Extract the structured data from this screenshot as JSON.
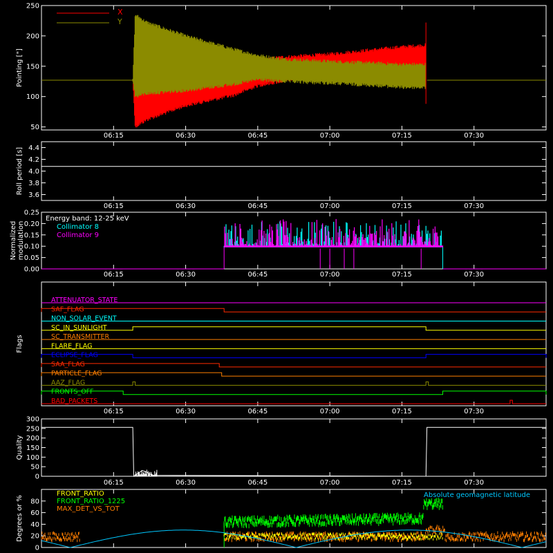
{
  "chart_data": [
    {
      "type": "line",
      "ylabel": "Pointing [\"]",
      "ylim": [
        45,
        250
      ],
      "yticks": [
        50,
        100,
        150,
        200,
        250
      ],
      "xlim": [
        "06:00",
        "07:45"
      ],
      "xticks": [
        "06:15",
        "06:30",
        "06:45",
        "07:00",
        "07:15",
        "07:30"
      ],
      "legend_placement": "top-left",
      "series": [
        {
          "name": "X",
          "color": "#ff0000",
          "x": [
            "06:00",
            "06:19",
            "06:19.5",
            "06:22",
            "06:30",
            "06:40",
            "06:45",
            "06:50",
            "07:00",
            "07:10",
            "07:15",
            "07:20",
            "07:20.2",
            "07:45"
          ],
          "y_high": [
            127,
            127,
            127,
            140,
            142,
            150,
            160,
            165,
            170,
            178,
            182,
            185,
            127,
            127
          ],
          "y_low": [
            127,
            127,
            50,
            62,
            85,
            102,
            118,
            125,
            140,
            146,
            148,
            145,
            127,
            127
          ]
        },
        {
          "name": "Y",
          "color": "#8b8b00",
          "x": [
            "06:00",
            "06:19",
            "06:19.5",
            "06:22",
            "06:30",
            "06:40",
            "06:45",
            "06:50",
            "07:00",
            "07:10",
            "07:15",
            "07:20",
            "07:20.2",
            "07:45"
          ],
          "y_high": [
            127,
            127,
            235,
            222,
            200,
            178,
            168,
            162,
            158,
            155,
            153,
            153,
            127,
            127
          ],
          "y_low": [
            127,
            127,
            100,
            105,
            110,
            120,
            128,
            125,
            122,
            118,
            115,
            115,
            127,
            127
          ]
        }
      ]
    },
    {
      "type": "line",
      "ylabel": "Roll period [s]",
      "ylim": [
        3.5,
        4.5
      ],
      "yticks": [
        3.6,
        3.8,
        4.0,
        4.2,
        4.4
      ],
      "xticks": [
        "06:15",
        "06:30",
        "06:45",
        "07:00",
        "07:15",
        "07:30"
      ],
      "series": [
        {
          "name": "",
          "color": "#ffffff",
          "value": 4.08
        }
      ]
    },
    {
      "type": "line",
      "ylabel": "Normalized modulation",
      "ylim": [
        0,
        0.25
      ],
      "yticks": [
        0.0,
        0.05,
        0.1,
        0.15,
        0.2,
        0.25
      ],
      "xticks": [
        "06:15",
        "06:30",
        "06:45",
        "07:00",
        "07:15",
        "07:30"
      ],
      "annotation": "Energy band: 12-25 keV",
      "series": [
        {
          "name": "Collimator 8",
          "color": "#00ffff",
          "active_start": "06:38",
          "active_end": "07:23.5",
          "baseline": 0.1
        },
        {
          "name": "Collimator 9",
          "color": "#ff00ff",
          "active_start": "06:38",
          "active_end": "07:23.5",
          "baseline": 0.1
        }
      ]
    },
    {
      "type": "line",
      "ylabel": "Flags",
      "xticks": [
        "06:15",
        "06:30",
        "06:45",
        "07:00",
        "07:15",
        "07:30"
      ],
      "series": [
        {
          "name": "ATTENUATOR_STATE",
          "color": "#ff00ff",
          "on": []
        },
        {
          "name": "SAF_FLAG",
          "color": "#ff2a00",
          "on": [
            [
              "06:00",
              "06:38"
            ]
          ]
        },
        {
          "name": "NON_SOLAR_EVENT",
          "color": "#00ffff",
          "on": []
        },
        {
          "name": "SC_IN_SUNLIGHT",
          "color": "#ffff00",
          "on": [
            [
              "06:19",
              "07:20"
            ]
          ]
        },
        {
          "name": "SC_TRANSMITTER",
          "color": "#ff7f00",
          "on": []
        },
        {
          "name": "FLARE_FLAG",
          "color": "#ffff00",
          "on": []
        },
        {
          "name": "ECLIPSE_FLAG",
          "color": "#0000ff",
          "on": [
            [
              "06:00",
              "06:19"
            ],
            [
              "07:20",
              "07:45"
            ]
          ]
        },
        {
          "name": "SAA_FLAG",
          "color": "#ff2a00",
          "on": [
            [
              "06:00",
              "06:37"
            ]
          ]
        },
        {
          "name": "PARTICLE_FLAG",
          "color": "#ff7f00",
          "on": [
            [
              "06:00",
              "06:37.5"
            ]
          ]
        },
        {
          "name": "AAZ_FLAG",
          "color": "#8b8b00",
          "on": [
            [
              "06:19",
              "06:19.5"
            ],
            [
              "07:20",
              "07:20.5"
            ]
          ]
        },
        {
          "name": "FRONTS_OFF",
          "color": "#00ff00",
          "on": [
            [
              "06:00",
              "06:17"
            ],
            [
              "07:23.5",
              "07:45"
            ]
          ]
        },
        {
          "name": "BAD_PACKETS",
          "color": "#ff0000",
          "on": [
            [
              "07:37.5",
              "07:38"
            ]
          ]
        }
      ]
    },
    {
      "type": "line",
      "ylabel": "Quality",
      "ylim": [
        0,
        300
      ],
      "yticks": [
        0,
        50,
        100,
        150,
        200,
        250,
        300
      ],
      "xticks": [
        "06:15",
        "06:30",
        "06:45",
        "07:00",
        "07:15",
        "07:30"
      ],
      "series": [
        {
          "name": "",
          "color": "#ffffff",
          "x": [
            "06:00",
            "06:19",
            "06:19.2",
            "06:20",
            "06:21",
            "06:22",
            "06:23",
            "07:20",
            "07:20.2",
            "07:45"
          ],
          "y": [
            256,
            256,
            0,
            15,
            30,
            20,
            5,
            0,
            256,
            256
          ]
        }
      ]
    },
    {
      "type": "line",
      "ylabel": "Degrees or %",
      "ylim": [
        0,
        100
      ],
      "yticks": [
        0,
        20,
        40,
        60,
        80
      ],
      "xticks": [
        "06:15",
        "06:30",
        "06:45",
        "07:00",
        "07:15",
        "07:30"
      ],
      "series": [
        {
          "name": "FRONT_RATIO",
          "color": "#ffff00"
        },
        {
          "name": "FRONT_RATIO_1225",
          "color": "#00ff00"
        },
        {
          "name": "MAX_DET_VS_TOT",
          "color": "#ff7f00"
        },
        {
          "name": "Absolute geomagnetic latitude",
          "color": "#00c8ff"
        }
      ]
    }
  ]
}
